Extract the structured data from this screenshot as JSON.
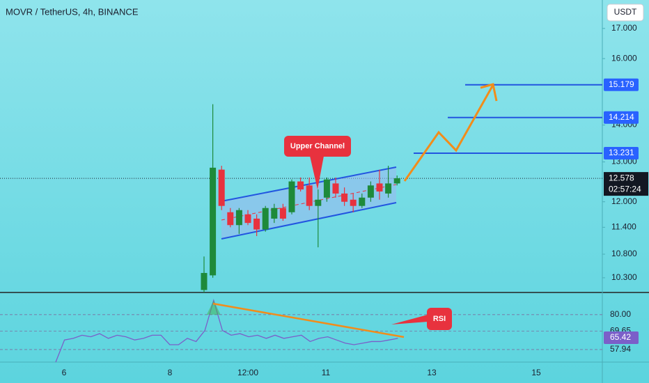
{
  "chart_data": {
    "type": "candlestick",
    "title": "MOVR / TetherUS, 4h, BINANCE",
    "currency_button": "USDT",
    "log_scale": true,
    "ylim": [
      10,
      18
    ],
    "yticks": [
      {
        "value": 17,
        "label": "17.000"
      },
      {
        "value": 16,
        "label": "16.000"
      },
      {
        "value": 14,
        "label": "14.000"
      },
      {
        "value": 13,
        "label": "13.000"
      },
      {
        "value": 12,
        "label": "12.000"
      },
      {
        "value": 11.4,
        "label": "11.400"
      },
      {
        "value": 10.8,
        "label": "10.800"
      },
      {
        "value": 10.3,
        "label": "10.300"
      }
    ],
    "x_labels": [
      "6",
      "8",
      "12:00",
      "11",
      "13",
      "15"
    ],
    "up_color": "#1e8a3a",
    "down_color": "#e8323e",
    "candles": {
      "open": [
        10.05,
        10.35,
        12.8,
        11.75,
        11.45,
        11.7,
        11.6,
        11.35,
        11.6,
        11.85,
        11.75,
        12.5,
        12.4,
        11.9,
        12.1,
        12.45,
        12.2,
        12.05,
        11.9,
        12.1,
        12.45,
        12.2,
        12.45
      ],
      "high": [
        10.75,
        14.6,
        12.9,
        11.85,
        11.85,
        11.8,
        11.7,
        11.9,
        11.95,
        11.95,
        12.55,
        12.6,
        12.6,
        12.3,
        12.6,
        12.6,
        12.35,
        12.2,
        12.2,
        12.5,
        12.8,
        12.9,
        12.65
      ],
      "low": [
        10.0,
        10.3,
        11.8,
        11.4,
        11.25,
        11.45,
        11.2,
        11.3,
        11.5,
        11.55,
        11.7,
        12.25,
        11.8,
        10.95,
        12.0,
        12.1,
        11.9,
        11.75,
        11.85,
        12.0,
        12.05,
        12.1,
        12.4
      ],
      "close": [
        10.4,
        12.85,
        11.9,
        11.45,
        11.8,
        11.5,
        11.35,
        11.85,
        11.85,
        11.6,
        12.5,
        12.3,
        11.9,
        12.05,
        12.55,
        12.2,
        12.0,
        11.9,
        12.1,
        12.4,
        12.25,
        12.45,
        12.58
      ]
    },
    "current_price": 12.578,
    "countdown": "02:57:24",
    "levels": [
      15.179,
      14.214,
      13.231
    ],
    "annotations": [
      "Upper Channel",
      "RSI"
    ],
    "rsi": {
      "ylim": [
        50,
        94
      ],
      "yticks": [
        {
          "value": 80,
          "label": "80.00"
        },
        69.65,
        57.94
      ],
      "current": 65.42,
      "color": "#7b5fc9",
      "values": [
        50,
        64,
        65,
        67,
        66,
        68,
        65,
        67,
        66,
        64,
        65,
        67,
        67,
        61,
        61,
        65,
        63,
        70,
        89,
        70,
        67,
        68,
        66,
        67,
        65,
        67,
        65,
        66,
        67,
        63,
        65,
        66,
        64,
        62,
        61,
        62,
        63,
        63,
        64,
        65
      ]
    }
  }
}
